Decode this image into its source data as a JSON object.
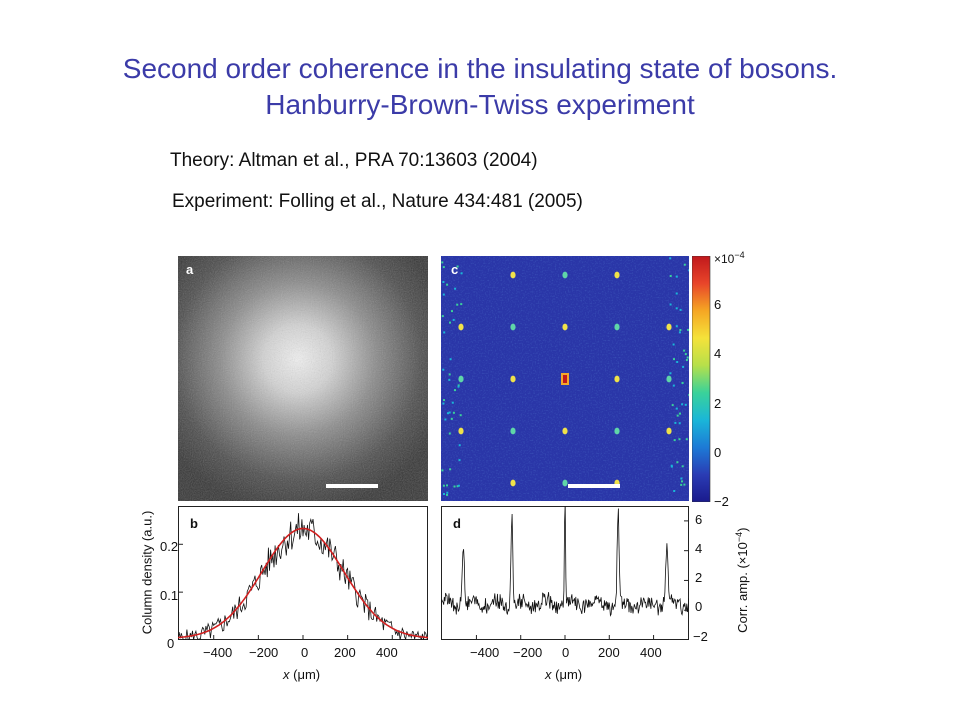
{
  "slide": {
    "title_line1": "Second order coherence in the insulating state of bosons.",
    "title_line2": "Hanburry-Brown-Twiss experiment",
    "theory_ref": "Theory: Altman et al., PRA 70:13603 (2004)",
    "experiment_ref": "Experiment: Folling et al.,  Nature 434:481 (2005)"
  },
  "figure": {
    "panel_a": {
      "label": "a"
    },
    "panel_c": {
      "label": "c"
    },
    "colorbar": {
      "scale_label": "×10",
      "scale_exp": "−4",
      "ticks": [
        "6",
        "4",
        "2",
        "0",
        "−2"
      ],
      "range": [
        -2,
        8
      ],
      "colors": [
        "#1a1a8c",
        "#2a3cb4",
        "#1d7ad6",
        "#1ab6d8",
        "#3ad29a",
        "#b7e04a",
        "#f5e23a",
        "#f5a623",
        "#e8452a",
        "#c0181c"
      ]
    },
    "panel_b": {
      "label": "b",
      "ylabel": "Column density (a.u.)",
      "xlabel_var": "x",
      "xlabel_unit": "(μm)",
      "yticks": [
        "0.2",
        "0.1",
        "0"
      ],
      "xticks": [
        "−400",
        "−200",
        "0",
        "200",
        "400"
      ]
    },
    "panel_d": {
      "label": "d",
      "ylabel_main": "Corr. amp. (×10",
      "ylabel_exp": "−4",
      "ylabel_end": ")",
      "xlabel_var": "x",
      "xlabel_unit": "(μm)",
      "yticks": [
        "6",
        "4",
        "2",
        "0",
        "−2"
      ],
      "xticks": [
        "−400",
        "−200",
        "0",
        "200",
        "400"
      ]
    }
  },
  "chart_data": [
    {
      "type": "line",
      "panel": "b",
      "xlabel": "x (μm)",
      "ylabel": "Column density (a.u.)",
      "xlim": [
        -560,
        560
      ],
      "ylim": [
        0,
        0.28
      ],
      "series": [
        {
          "x": [
            -560,
            -400,
            -300,
            -200,
            -100,
            0,
            100,
            200,
            300,
            400,
            560
          ],
          "values": [
            0.005,
            0.03,
            0.06,
            0.12,
            0.19,
            0.23,
            0.21,
            0.15,
            0.09,
            0.04,
            0.01
          ]
        }
      ]
    },
    {
      "type": "line",
      "panel": "d",
      "xlabel": "x (μm)",
      "ylabel": "Corr. amp. (×10−4)",
      "xlim": [
        -560,
        560
      ],
      "ylim": [
        -2,
        7
      ],
      "series": [
        {
          "x": [
            -560,
            -460,
            -400,
            -300,
            -240,
            -150,
            0,
            150,
            240,
            300,
            400,
            460,
            560
          ],
          "values": [
            0.3,
            4.0,
            0.5,
            0.3,
            6.0,
            0.3,
            7.5,
            0.3,
            6.0,
            0.3,
            0.5,
            4.0,
            0.3
          ]
        }
      ]
    }
  ]
}
